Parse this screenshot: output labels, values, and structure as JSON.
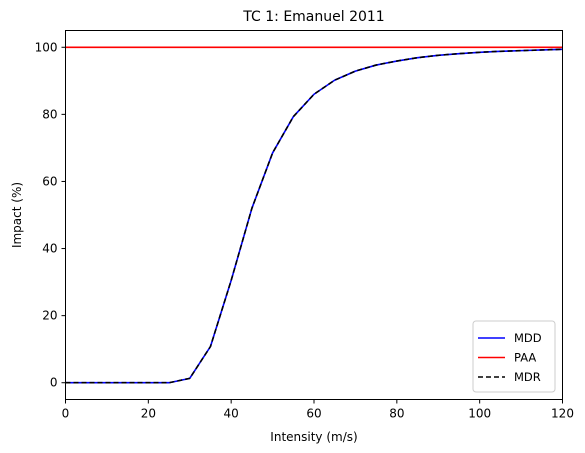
{
  "chart_data": {
    "type": "line",
    "title": "TC 1: Emanuel 2011",
    "xlabel": "Intensity (m/s)",
    "ylabel": "Impact (%)",
    "xlim": [
      0,
      120
    ],
    "ylim": [
      -5,
      105
    ],
    "xticks": [
      0,
      20,
      40,
      60,
      80,
      100,
      120
    ],
    "yticks": [
      0,
      20,
      40,
      60,
      80,
      100
    ],
    "grid": false,
    "legend_position": "lower-right",
    "x": [
      0,
      5,
      10,
      15,
      20,
      25,
      30,
      35,
      40,
      45,
      50,
      55,
      60,
      65,
      70,
      75,
      80,
      85,
      90,
      95,
      100,
      105,
      110,
      115,
      120
    ],
    "series": [
      {
        "name": "MDD",
        "color": "#0000ff",
        "style": "solid",
        "values": [
          0,
          0,
          0,
          0,
          0,
          0,
          1.3,
          10.8,
          30.5,
          52.0,
          68.5,
          79.3,
          86.0,
          90.2,
          92.9,
          94.7,
          95.9,
          96.9,
          97.6,
          98.1,
          98.5,
          98.8,
          99.0,
          99.2,
          99.4
        ]
      },
      {
        "name": "PAA",
        "color": "#ff0000",
        "style": "solid",
        "values": [
          100,
          100,
          100,
          100,
          100,
          100,
          100,
          100,
          100,
          100,
          100,
          100,
          100,
          100,
          100,
          100,
          100,
          100,
          100,
          100,
          100,
          100,
          100,
          100,
          100
        ]
      },
      {
        "name": "MDR",
        "color": "#000000",
        "style": "dashed",
        "values": [
          0,
          0,
          0,
          0,
          0,
          0,
          1.3,
          10.8,
          30.5,
          52.0,
          68.5,
          79.3,
          86.0,
          90.2,
          92.9,
          94.7,
          95.9,
          96.9,
          97.6,
          98.1,
          98.5,
          98.8,
          99.0,
          99.2,
          99.4
        ]
      }
    ]
  }
}
